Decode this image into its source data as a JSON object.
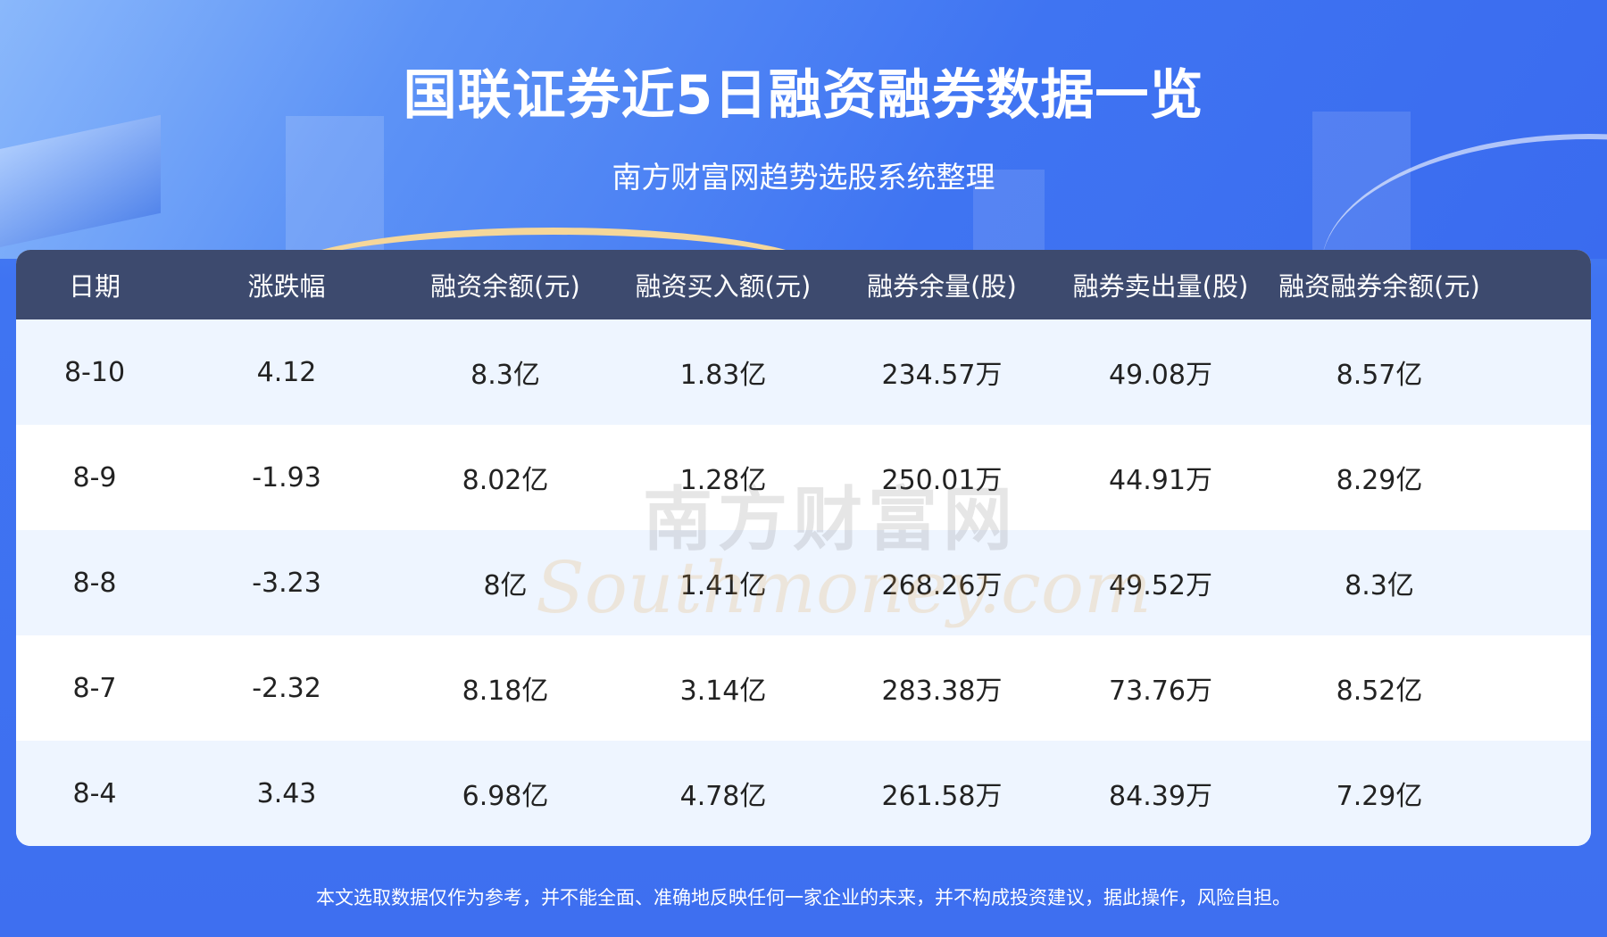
{
  "header": {
    "title": "国联证券近5日融资融券数据一览",
    "subtitle": "南方财富网趋势选股系统整理"
  },
  "table": {
    "columns": [
      "日期",
      "涨跌幅",
      "融资余额(元)",
      "融资买入额(元)",
      "融券余量(股)",
      "融券卖出量(股)",
      "融资融券余额(元)"
    ],
    "rows": [
      [
        "8-10",
        "4.12",
        "8.3亿",
        "1.83亿",
        "234.57万",
        "49.08万",
        "8.57亿"
      ],
      [
        "8-9",
        "-1.93",
        "8.02亿",
        "1.28亿",
        "250.01万",
        "44.91万",
        "8.29亿"
      ],
      [
        "8-8",
        "-3.23",
        "8亿",
        "1.41亿",
        "268.26万",
        "49.52万",
        "8.3亿"
      ],
      [
        "8-7",
        "-2.32",
        "8.18亿",
        "3.14亿",
        "283.38万",
        "73.76万",
        "8.52亿"
      ],
      [
        "8-4",
        "3.43",
        "6.98亿",
        "4.78亿",
        "261.58万",
        "84.39万",
        "7.29亿"
      ]
    ]
  },
  "watermark": {
    "cn": "南方财富网",
    "en": "Southmoney.com"
  },
  "footer": "本文选取数据仅作为参考，并不能全面、准确地反映任何一家企业的未来，并不构成投资建议，据此操作，风险自担。",
  "colors": {
    "header_bg": "#3d4a6e",
    "page_bg": "#3f74f2",
    "row_alt": "#eef5ff"
  }
}
